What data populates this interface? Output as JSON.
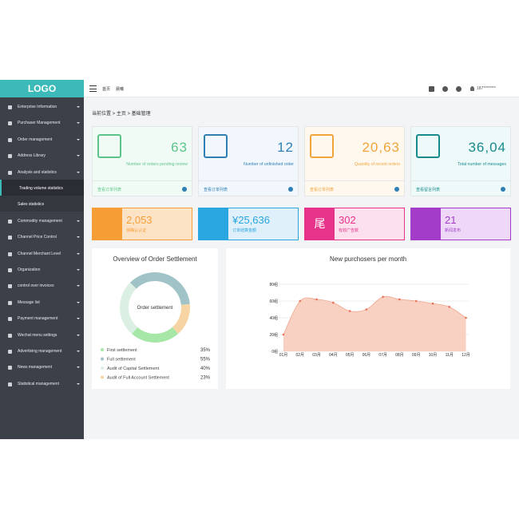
{
  "logo": "LOGO",
  "topbar": {
    "home": "首页",
    "user_menu": "晨曦",
    "account": "187********"
  },
  "sidebar": {
    "items": [
      {
        "label": "Enterprise Information"
      },
      {
        "label": "Purchaser Management"
      },
      {
        "label": "Order management"
      },
      {
        "label": "Address Library"
      },
      {
        "label": "Analysis and statistics",
        "active": true,
        "children": [
          "Trading volume statistics",
          "Sales statistics"
        ]
      },
      {
        "label": "Commodity management"
      },
      {
        "label": "Channel Price Control"
      },
      {
        "label": "Channel Merchant Level"
      },
      {
        "label": "Organization"
      },
      {
        "label": "control over invoices"
      },
      {
        "label": "Message list"
      },
      {
        "label": "Payment management"
      },
      {
        "label": "Wechat menu settings"
      },
      {
        "label": "Advertising management"
      },
      {
        "label": "News management"
      },
      {
        "label": "Statistical management"
      }
    ]
  },
  "breadcrumb": "当前位置 > 主页 > 基础管理",
  "stat_cards": [
    {
      "number": "63",
      "label": "Number of orders pending review",
      "link": "查看订单列表",
      "color": "#5cc48a",
      "bg": "#f1fbf5"
    },
    {
      "number": "12",
      "label": "Number of unfinished order",
      "link": "查看订单列表",
      "color": "#2f7fb5",
      "bg": "#f1f7fc"
    },
    {
      "number": "20,63",
      "label": "Quantity of recent orders",
      "link": "查看订单列表",
      "color": "#f2a43a",
      "bg": "#fff8ef"
    },
    {
      "number": "36,04",
      "label": "Total number of messages",
      "link": "查看留言列表",
      "color": "#178a8e",
      "bg": "#eefafa"
    }
  ],
  "tiles": [
    {
      "number": "2,053",
      "label": "待确认认证",
      "color": "#f79d35",
      "bg": "#fde3c6"
    },
    {
      "number": "¥25,636",
      "label": "订单结算金额",
      "color": "#2aa6e0",
      "bg": "#dff0fa"
    },
    {
      "number": "302",
      "label": "有效广告数",
      "icon": "尾",
      "color": "#e8338a",
      "bg": "#fde0ee"
    },
    {
      "number": "21",
      "label": "新闻发布",
      "color": "#a33cc8",
      "bg": "#efd8f7"
    }
  ],
  "donut": {
    "title": "Overview of Order Settlement",
    "center": "Order settlement",
    "items": [
      {
        "name": "First settlement",
        "value": 35,
        "label": "35%",
        "color": "#a6e6a6"
      },
      {
        "name": "Full settlement",
        "value": 55,
        "label": "55%",
        "color": "#9fc3c7"
      },
      {
        "name": "Audit of Capital Settlement",
        "value": 40,
        "label": "40%",
        "color": "#dcefe3"
      },
      {
        "name": "Audit of Full Account Settlement",
        "value": 23,
        "label": "23%",
        "color": "#f6d4a4"
      }
    ]
  },
  "line": {
    "type": "line",
    "title": "New purchosers per month",
    "categories": [
      "01月",
      "02月",
      "03月",
      "04月",
      "05月",
      "06月",
      "07月",
      "08月",
      "09月",
      "10月",
      "11月",
      "12月"
    ],
    "values": [
      20,
      60,
      62,
      58,
      48,
      50,
      65,
      62,
      60,
      57,
      53,
      40
    ],
    "ylim": [
      0,
      80
    ],
    "yticks": [
      {
        "value": 0,
        "label": "0组"
      },
      {
        "value": 20,
        "label": "20组"
      },
      {
        "value": 40,
        "label": "40组"
      },
      {
        "value": 60,
        "label": "60组"
      },
      {
        "value": 80,
        "label": "80组"
      }
    ],
    "color": "#f0a58c",
    "grid": true
  }
}
